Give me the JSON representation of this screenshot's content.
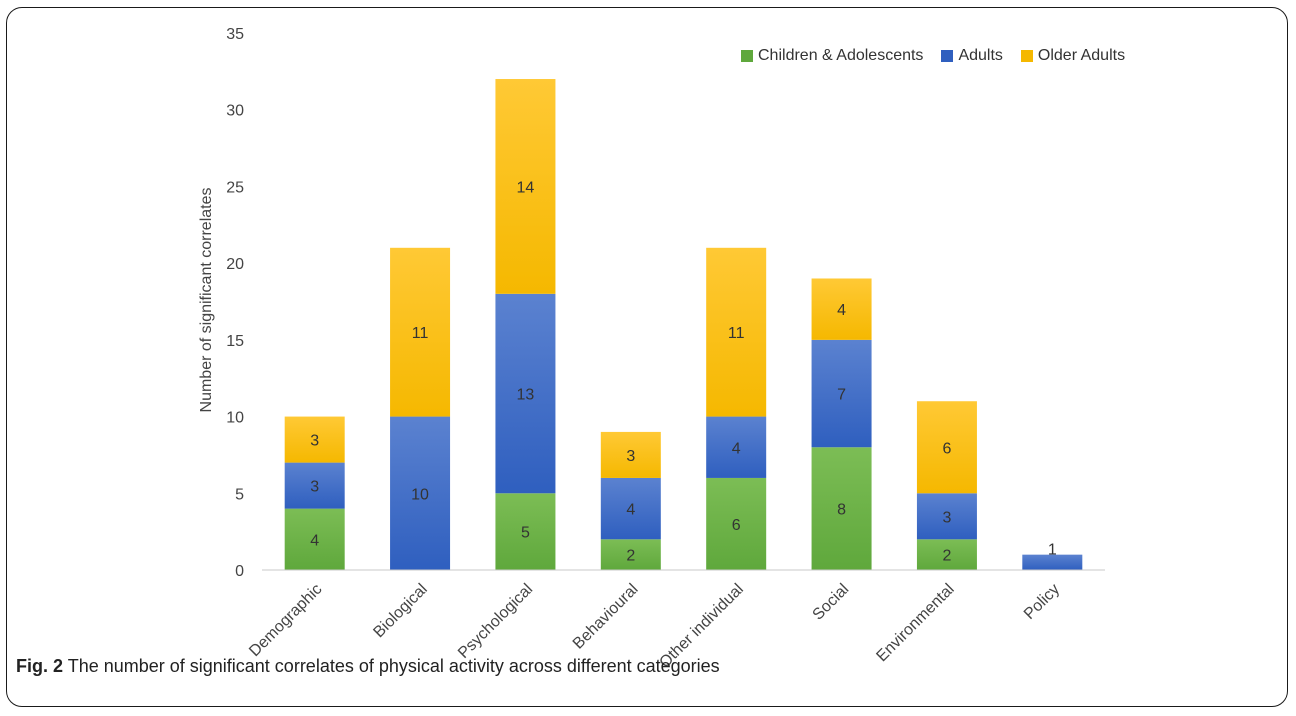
{
  "caption": {
    "label": "Fig. 2",
    "text": "The number of significant correlates of physical activity across different categories"
  },
  "chart_data": {
    "type": "bar",
    "stacked": true,
    "title": "",
    "xlabel": "",
    "ylabel": "Number of significant correlates",
    "ylim": [
      0,
      35
    ],
    "yticks": [
      0,
      5,
      10,
      15,
      20,
      25,
      30,
      35
    ],
    "grid": false,
    "legend_position": "top-right",
    "categories": [
      "Demographic",
      "Biological",
      "Psychological",
      "Behavioural",
      "Other individual",
      "Social",
      "Environmental",
      "Policy"
    ],
    "series": [
      {
        "name": "Children & Adolescents",
        "color": "#5fa83c",
        "color_light": "#7cbd55",
        "values": [
          4,
          0,
          5,
          2,
          6,
          8,
          2,
          0
        ]
      },
      {
        "name": "Adults",
        "color": "#2f5fbf",
        "color_light": "#5b82d0",
        "values": [
          3,
          10,
          13,
          4,
          4,
          7,
          3,
          1
        ]
      },
      {
        "name": "Older Adults",
        "color": "#f5b800",
        "color_light": "#ffc935",
        "values": [
          3,
          11,
          14,
          3,
          11,
          4,
          6,
          0
        ]
      }
    ]
  }
}
